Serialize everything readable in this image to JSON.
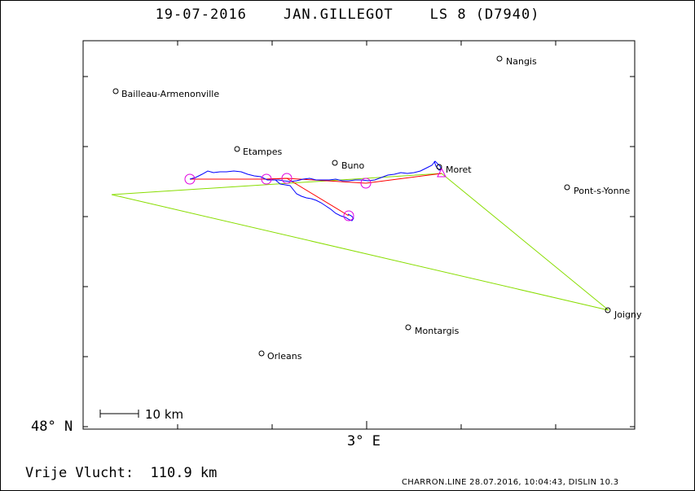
{
  "title": "19-07-2016    JAN.GILLEGOT    LS 8 (D7940)",
  "axes": {
    "lat_label": "48° N",
    "lon_label": "3° E"
  },
  "scale": {
    "label": "10 km"
  },
  "distance_text": "Vrije Vlucht:  110.9 km",
  "footer": "CHARRON.LINE 28.07.2016, 10:04:43, DISLIN 10.3",
  "colors": {
    "track": "#0000ff",
    "task": "#ff0000",
    "fai_triangle": "#88dd00",
    "turnpoint": "#e000e0",
    "frame": "#000000"
  },
  "cities": [
    {
      "name": "Nangis"
    },
    {
      "name": "Bailleau-Armenonville"
    },
    {
      "name": "Etampes"
    },
    {
      "name": "Buno"
    },
    {
      "name": "Moret"
    },
    {
      "name": "Pont-s-Yonne"
    },
    {
      "name": "Joigny"
    },
    {
      "name": "Montargis"
    },
    {
      "name": "Orleans"
    }
  ]
}
